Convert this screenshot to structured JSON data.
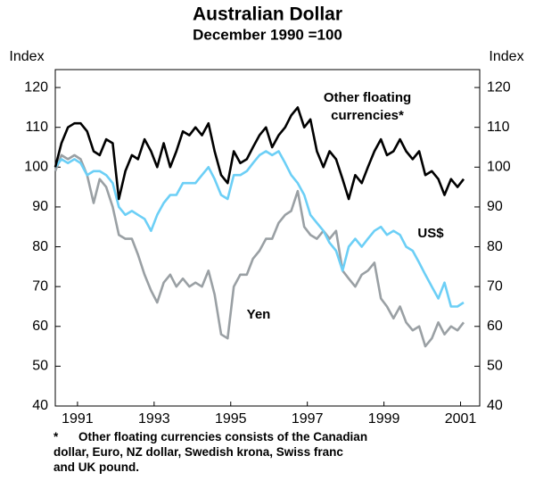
{
  "chart_data": {
    "type": "line",
    "title": "Australian Dollar",
    "subtitle": "December 1990 =100",
    "y_label": "Index",
    "y2_label": "Index",
    "x": [
      1990.92,
      1991.08,
      1991.25,
      1991.42,
      1991.58,
      1991.75,
      1991.92,
      1992.08,
      1992.25,
      1992.42,
      1992.58,
      1992.75,
      1992.92,
      1993.08,
      1993.25,
      1993.42,
      1993.58,
      1993.75,
      1993.92,
      1994.08,
      1994.25,
      1994.42,
      1994.58,
      1994.75,
      1994.92,
      1995.08,
      1995.25,
      1995.42,
      1995.58,
      1995.75,
      1995.92,
      1996.08,
      1996.25,
      1996.42,
      1996.58,
      1996.75,
      1996.92,
      1997.08,
      1997.25,
      1997.42,
      1997.58,
      1997.75,
      1997.92,
      1998.08,
      1998.25,
      1998.42,
      1998.58,
      1998.75,
      1998.92,
      1999.08,
      1999.25,
      1999.42,
      1999.58,
      1999.75,
      1999.92,
      2000.08,
      2000.25,
      2000.42,
      2000.58,
      2000.75,
      2000.92,
      2001.08,
      2001.25,
      2001.42,
      2001.58
    ],
    "series": [
      {
        "name": "Other floating currencies*",
        "color": "#000000",
        "values": [
          100,
          106,
          110,
          111,
          111,
          109,
          104,
          103,
          107,
          106,
          92,
          99,
          103,
          102,
          107,
          104,
          100,
          106,
          100,
          104,
          109,
          108,
          110,
          108,
          111,
          104,
          98,
          96,
          104,
          101,
          102,
          105,
          108,
          110,
          105,
          108,
          110,
          113,
          115,
          110,
          112,
          104,
          100,
          104,
          102,
          97,
          92,
          98,
          96,
          100,
          104,
          107,
          103,
          104,
          107,
          104,
          102,
          104,
          98,
          99,
          97,
          93,
          97,
          95,
          97
        ]
      },
      {
        "name": "US$",
        "color": "#6ccff6",
        "values": [
          100,
          102,
          101,
          102,
          101,
          98,
          99,
          99,
          98,
          96,
          90,
          88,
          89,
          88,
          87,
          84,
          88,
          91,
          93,
          93,
          96,
          96,
          96,
          98,
          100,
          97,
          93,
          92,
          98,
          98,
          99,
          101,
          103,
          104,
          103,
          104,
          101,
          98,
          96,
          93,
          88,
          86,
          84,
          81,
          79,
          74,
          80,
          82,
          80,
          82,
          84,
          85,
          83,
          84,
          83,
          80,
          79,
          76,
          73,
          70,
          67,
          71,
          65,
          65,
          66
        ]
      },
      {
        "name": "Yen",
        "color": "#9aa0a4",
        "values": [
          99,
          103,
          102,
          103,
          102,
          98,
          91,
          97,
          95,
          90,
          83,
          82,
          82,
          78,
          73,
          69,
          66,
          71,
          73,
          70,
          72,
          70,
          71,
          70,
          74,
          68,
          58,
          57,
          70,
          73,
          73,
          77,
          79,
          82,
          82,
          86,
          88,
          89,
          94,
          85,
          83,
          82,
          84,
          82,
          84,
          74,
          72,
          70,
          73,
          74,
          76,
          67,
          65,
          62,
          65,
          61,
          59,
          60,
          55,
          57,
          61,
          58,
          60,
          59,
          61
        ]
      }
    ],
    "annotations": [
      "Other floating",
      "currencies*",
      "US$",
      "Yen"
    ],
    "xlim": [
      1990.92,
      2002
    ],
    "xticks": [
      {
        "value": 1991.5,
        "label": "1991"
      },
      {
        "value": 1993.5,
        "label": "1993"
      },
      {
        "value": 1995.5,
        "label": "1995"
      },
      {
        "value": 1997.5,
        "label": "1997"
      },
      {
        "value": 1999.5,
        "label": "1999"
      },
      {
        "value": 2001.5,
        "label": "2001"
      }
    ],
    "ylim": [
      40,
      124.5
    ],
    "yticks": [
      40,
      50,
      60,
      70,
      80,
      90,
      100,
      110,
      120
    ],
    "y2lim": [
      40,
      124.5
    ],
    "y2ticks": [
      40,
      50,
      60,
      70,
      80,
      90,
      100,
      110,
      120
    ],
    "footnote": {
      "marker": "*",
      "lines": [
        "Other floating currencies consists of the Canadian",
        "dollar, Euro, NZ dollar, Swedish krona, Swiss franc",
        "and UK pound."
      ]
    }
  }
}
